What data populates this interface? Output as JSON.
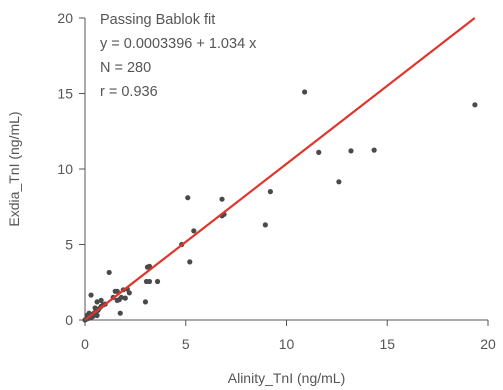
{
  "chart_data": {
    "type": "scatter",
    "xlabel": "Alinity_TnI (ng/mL)",
    "ylabel": "Exdia_TnI (ng/mL)",
    "xlim": [
      0,
      20
    ],
    "ylim": [
      0,
      20
    ],
    "xticks": [
      "0",
      "5",
      "10",
      "15",
      "20"
    ],
    "yticks": [
      "0",
      "5",
      "10",
      "15",
      "20"
    ],
    "grid": false,
    "annotations": [
      "Passing Bablok fit",
      "y = 0.0003396 + 1.034 x",
      "N = 280",
      "r = 0.936"
    ],
    "fit_line": {
      "intercept": 0.0003396,
      "slope": 1.034,
      "color": "#e0352b"
    },
    "point_color": "#4a4a4a",
    "axis_color": "#555555",
    "points": [
      [
        0.0,
        0.0
      ],
      [
        0.05,
        0.05
      ],
      [
        0.1,
        0.1
      ],
      [
        0.15,
        0.1
      ],
      [
        0.2,
        0.2
      ],
      [
        0.25,
        0.2
      ],
      [
        0.3,
        0.3
      ],
      [
        0.35,
        0.35
      ],
      [
        0.4,
        0.4
      ],
      [
        0.45,
        0.45
      ],
      [
        0.5,
        0.5
      ],
      [
        0.55,
        0.55
      ],
      [
        0.6,
        0.6
      ],
      [
        0.65,
        0.65
      ],
      [
        0.7,
        0.75
      ],
      [
        0.1,
        0.3
      ],
      [
        0.2,
        0.45
      ],
      [
        0.3,
        0.15
      ],
      [
        0.4,
        0.25
      ],
      [
        0.5,
        0.8
      ],
      [
        0.6,
        0.3
      ],
      [
        0.8,
        0.9
      ],
      [
        0.9,
        1.0
      ],
      [
        1.0,
        1.05
      ],
      [
        0.8,
        1.3
      ],
      [
        0.6,
        1.2
      ],
      [
        0.3,
        1.65
      ],
      [
        1.2,
        3.15
      ],
      [
        1.4,
        1.5
      ],
      [
        1.5,
        1.9
      ],
      [
        1.6,
        1.9
      ],
      [
        1.6,
        1.3
      ],
      [
        1.7,
        1.35
      ],
      [
        1.8,
        1.5
      ],
      [
        1.75,
        0.45
      ],
      [
        1.9,
        2.0
      ],
      [
        2.0,
        1.45
      ],
      [
        2.1,
        2.05
      ],
      [
        2.2,
        1.8
      ],
      [
        3.0,
        1.2
      ],
      [
        3.05,
        2.55
      ],
      [
        3.1,
        3.5
      ],
      [
        3.2,
        3.55
      ],
      [
        3.2,
        2.55
      ],
      [
        3.6,
        2.55
      ],
      [
        4.8,
        5.0
      ],
      [
        5.1,
        8.1
      ],
      [
        5.2,
        3.85
      ],
      [
        5.4,
        5.9
      ],
      [
        6.8,
        8.0
      ],
      [
        6.8,
        6.9
      ],
      [
        6.9,
        7.0
      ],
      [
        8.95,
        6.3
      ],
      [
        9.2,
        8.5
      ],
      [
        10.9,
        15.1
      ],
      [
        11.6,
        11.1
      ],
      [
        12.6,
        9.15
      ],
      [
        13.2,
        11.2
      ],
      [
        14.35,
        11.25
      ],
      [
        19.35,
        14.25
      ]
    ]
  }
}
